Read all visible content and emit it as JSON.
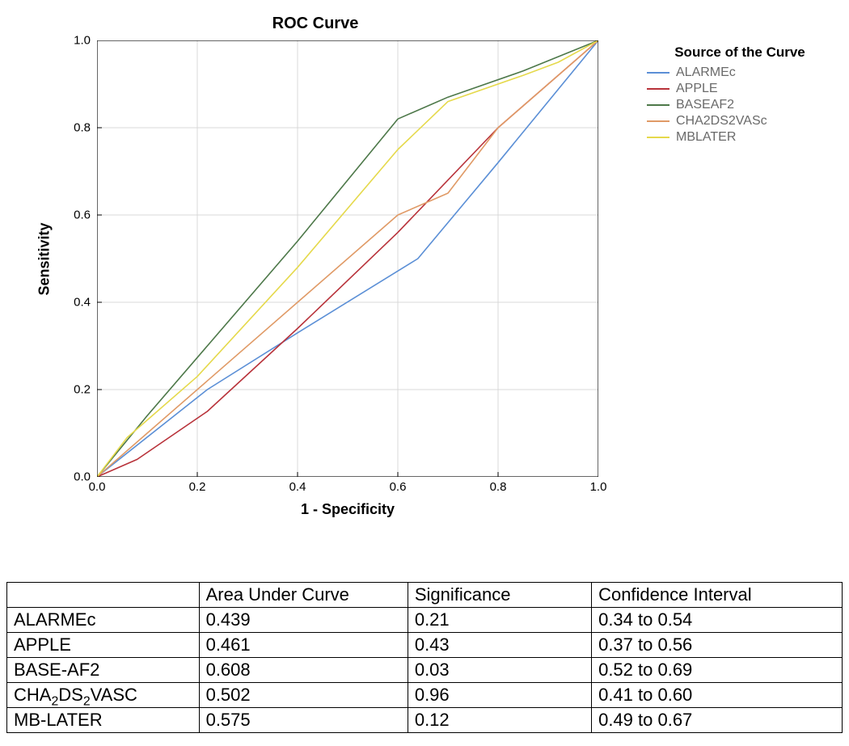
{
  "chart": {
    "title": "ROC Curve",
    "xlabel": "1 - Specificity",
    "ylabel": "Sensitivity",
    "xlim": [
      0.0,
      1.0
    ],
    "ylim": [
      0.0,
      1.0
    ],
    "xticks": [
      0.0,
      0.2,
      0.4,
      0.6,
      0.8,
      1.0
    ],
    "yticks": [
      0.0,
      0.2,
      0.4,
      0.6,
      0.8,
      1.0
    ],
    "xtick_labels": [
      "0.0",
      "0.2",
      "0.4",
      "0.6",
      "0.8",
      "1.0"
    ],
    "ytick_labels": [
      "0.0",
      "0.2",
      "0.4",
      "0.6",
      "0.8",
      "1.0"
    ],
    "background_color": "#ffffff",
    "border_color": "#000000",
    "border_width": 1.2,
    "grid_color": "#d9d9d9",
    "line_width": 1.6,
    "title_fontsize": 20,
    "label_fontsize": 18,
    "tick_fontsize": 15,
    "legend_title": "Source of the Curve",
    "legend_title_fontsize": 17,
    "legend_label_fontsize": 16,
    "legend_label_color": "#6a6a6a",
    "series": [
      {
        "name": "ALARMEc",
        "color": "#5b8fd6",
        "points": [
          [
            0.0,
            0.0
          ],
          [
            0.22,
            0.2
          ],
          [
            0.4,
            0.33
          ],
          [
            0.64,
            0.5
          ],
          [
            0.8,
            0.72
          ],
          [
            1.0,
            1.0
          ]
        ]
      },
      {
        "name": "APPLE",
        "color": "#b8323a",
        "points": [
          [
            0.0,
            0.0
          ],
          [
            0.08,
            0.04
          ],
          [
            0.22,
            0.15
          ],
          [
            0.4,
            0.34
          ],
          [
            0.6,
            0.56
          ],
          [
            0.8,
            0.8
          ],
          [
            1.0,
            1.0
          ]
        ]
      },
      {
        "name": "BASEAF2",
        "color": "#4d7849",
        "points": [
          [
            0.0,
            0.0
          ],
          [
            0.1,
            0.14
          ],
          [
            0.22,
            0.3
          ],
          [
            0.4,
            0.54
          ],
          [
            0.6,
            0.82
          ],
          [
            0.7,
            0.87
          ],
          [
            0.85,
            0.93
          ],
          [
            1.0,
            1.0
          ]
        ]
      },
      {
        "name": "CHA2DS2VASc",
        "color": "#e09a66",
        "points": [
          [
            0.0,
            0.0
          ],
          [
            0.1,
            0.1
          ],
          [
            0.22,
            0.22
          ],
          [
            0.4,
            0.4
          ],
          [
            0.6,
            0.6
          ],
          [
            0.7,
            0.65
          ],
          [
            0.8,
            0.8
          ],
          [
            1.0,
            1.0
          ]
        ]
      },
      {
        "name": "MBLATER",
        "color": "#e5d94b",
        "points": [
          [
            0.0,
            0.0
          ],
          [
            0.06,
            0.09
          ],
          [
            0.2,
            0.23
          ],
          [
            0.4,
            0.48
          ],
          [
            0.6,
            0.75
          ],
          [
            0.7,
            0.86
          ],
          [
            0.85,
            0.92
          ],
          [
            0.92,
            0.95
          ],
          [
            1.0,
            1.0
          ]
        ]
      }
    ]
  },
  "table": {
    "columns": [
      "",
      "Area Under Curve",
      "Significance",
      "Confidence Interval"
    ],
    "rows": [
      {
        "label": "ALARMEc",
        "auc": "0.439",
        "sig": "0.21",
        "ci": "0.34 to 0.54"
      },
      {
        "label": "APPLE",
        "auc": "0.461",
        "sig": "0.43",
        "ci": "0.37 to 0.56"
      },
      {
        "label": "BASE-AF2",
        "auc": "0.608",
        "sig": "0.03",
        "ci": "0.52 to 0.69"
      },
      {
        "label_html": "CHA<sub>2</sub>DS<sub>2</sub>VASC",
        "label": "CHA2DS2VASC",
        "auc": "0.502",
        "sig": "0.96",
        "ci": "0.41 to 0.60"
      },
      {
        "label": "MB-LATER",
        "auc": "0.575",
        "sig": "0.12",
        "ci": "0.49 to 0.67"
      }
    ],
    "border_color": "#000000",
    "fontsize": 22
  }
}
